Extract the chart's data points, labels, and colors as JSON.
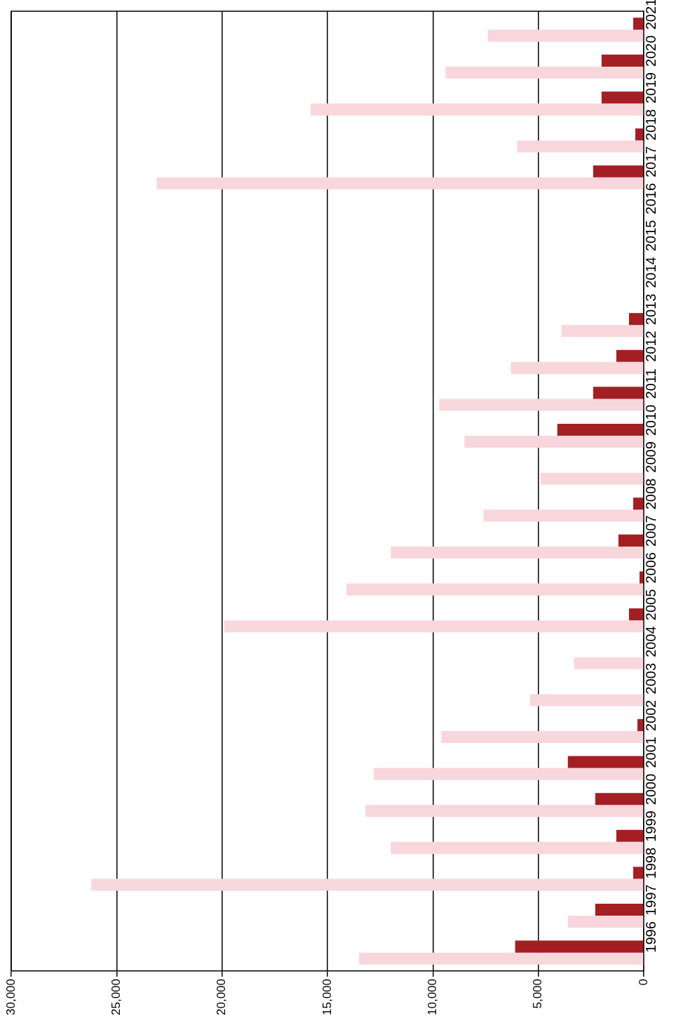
{
  "chart_data": {
    "type": "bar",
    "orientation": "horizontal",
    "categories": [
      "2021",
      "2020",
      "2019",
      "2018",
      "2017",
      "2016",
      "2015",
      "2014",
      "2013",
      "2012",
      "2011",
      "2010",
      "2009",
      "2008",
      "2007",
      "2006",
      "2005",
      "2004",
      "2003",
      "2002",
      "2001",
      "2000",
      "1999",
      "1998",
      "1997",
      "1996"
    ],
    "series": [
      {
        "color": "#a31f24",
        "values": [
          500,
          2000,
          2000,
          400,
          2400,
          null,
          null,
          null,
          700,
          1300,
          2400,
          4100,
          null,
          500,
          1200,
          200,
          700,
          null,
          null,
          300,
          3600,
          2300,
          1300,
          500,
          2300,
          6100
        ]
      },
      {
        "color": "#f8d7dc",
        "values": [
          7400,
          9400,
          15800,
          6000,
          23100,
          null,
          null,
          null,
          3900,
          6300,
          9700,
          8500,
          4900,
          7600,
          12000,
          14100,
          19900,
          3300,
          5400,
          9600,
          12800,
          13200,
          12000,
          26200,
          3600,
          13500
        ]
      }
    ],
    "xlim": [
      30000,
      0
    ],
    "xticks": [
      {
        "value": 30000,
        "label": "30,000"
      },
      {
        "value": 25000,
        "label": "25,000"
      },
      {
        "value": 20000,
        "label": "20,000"
      },
      {
        "value": 15000,
        "label": "15,000"
      },
      {
        "value": 10000,
        "label": "10,000"
      },
      {
        "value": 5000,
        "label": "5,000"
      },
      0
    ],
    "grid": "x",
    "legend": false
  }
}
